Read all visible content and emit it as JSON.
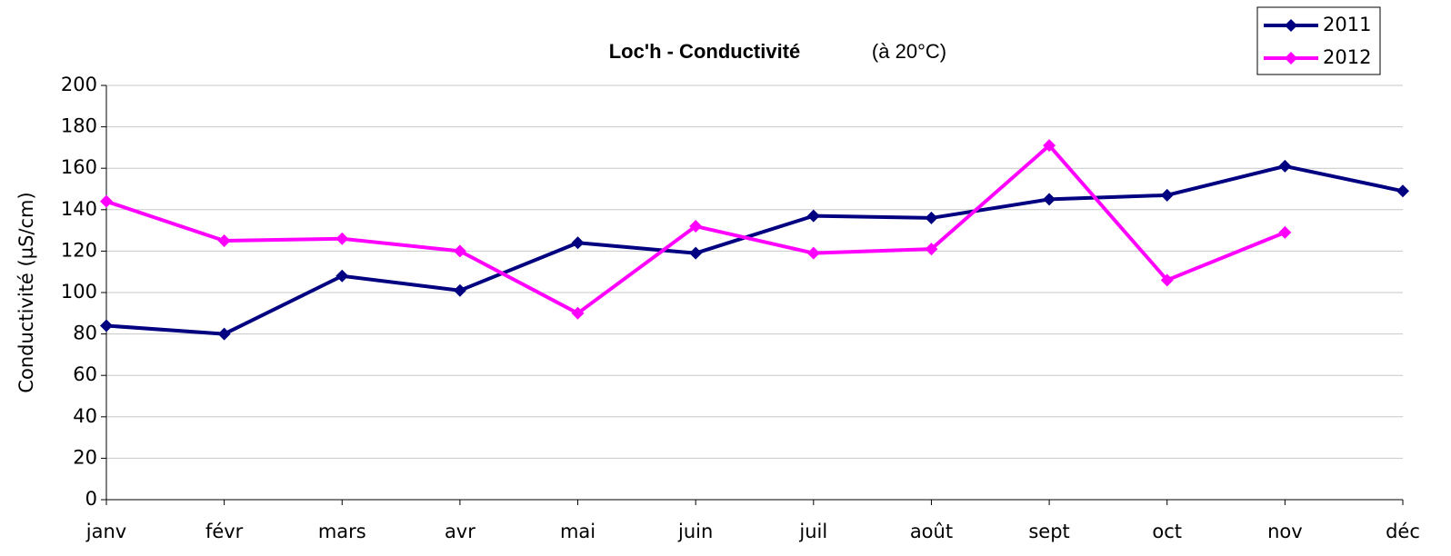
{
  "chart_data": {
    "type": "line",
    "title": "Loc'h - Conductivité",
    "subtitle": "(à 20°C)",
    "y_label": "Conductivité (µS/cm)",
    "categories": [
      "janv",
      "févr",
      "mars",
      "avr",
      "mai",
      "juin",
      "juil",
      "août",
      "sept",
      "oct",
      "nov",
      "déc"
    ],
    "series": [
      {
        "name": "2011",
        "color": "#000080",
        "values": [
          84,
          80,
          108,
          101,
          124,
          119,
          137,
          136,
          145,
          147,
          161,
          149
        ]
      },
      {
        "name": "2012",
        "color": "#ff00ff",
        "values": [
          144,
          125,
          126,
          120,
          90,
          132,
          119,
          121,
          171,
          106,
          129,
          null
        ]
      }
    ],
    "ylim": [
      0,
      200
    ],
    "yticks": [
      0,
      20,
      40,
      60,
      80,
      100,
      120,
      140,
      160,
      180,
      200
    ],
    "grid": true,
    "legend": "top-right"
  }
}
